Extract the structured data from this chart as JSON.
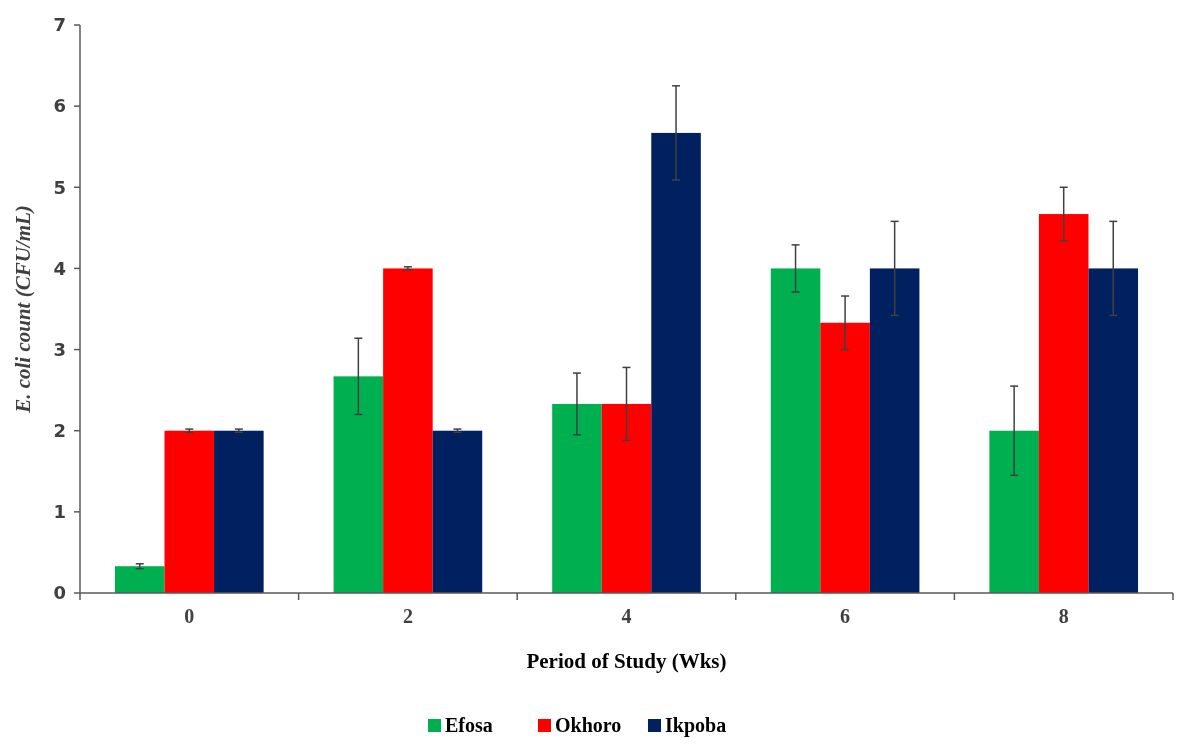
{
  "chart_data": {
    "type": "bar",
    "xlabel": "Period of Study (Wks)",
    "ylabel": "E. coli count (CFU/mL)",
    "categories": [
      "0",
      "2",
      "4",
      "6",
      "8"
    ],
    "series": [
      {
        "name": "Efosa",
        "color": "#00b050",
        "values": [
          0.33,
          2.67,
          2.33,
          4.0,
          2.0
        ],
        "errors": [
          0.03,
          0.47,
          0.38,
          0.29,
          0.55
        ]
      },
      {
        "name": "Okhoro",
        "color": "#ff0000",
        "values": [
          2.0,
          4.0,
          2.33,
          3.33,
          4.67
        ],
        "errors": [
          0.02,
          0.02,
          0.45,
          0.33,
          0.33
        ]
      },
      {
        "name": "Ikpoba",
        "color": "#002060",
        "values": [
          2.0,
          2.0,
          5.67,
          4.0,
          4.0
        ],
        "errors": [
          0.02,
          0.02,
          0.58,
          0.58,
          0.58
        ]
      }
    ],
    "ylim": [
      0,
      7
    ],
    "yticks": [
      0,
      1,
      2,
      3,
      4,
      5,
      6,
      7
    ],
    "grid": false,
    "legend": "bottom"
  }
}
